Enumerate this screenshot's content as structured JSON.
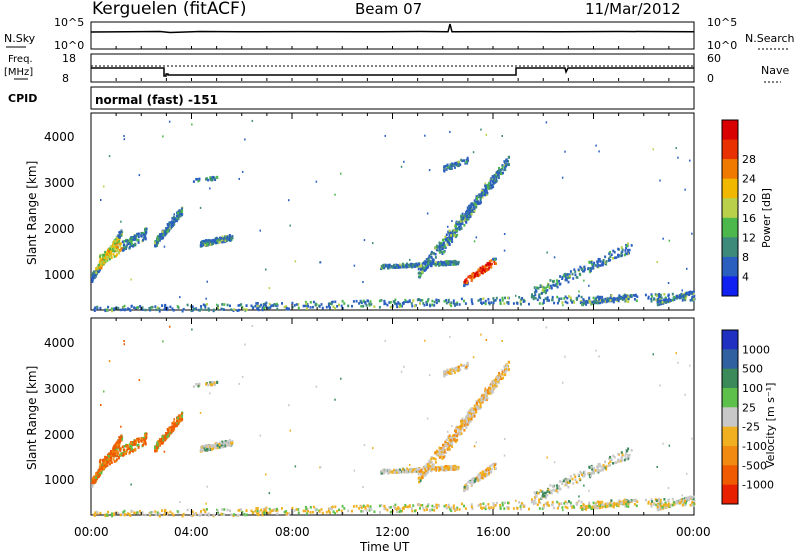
{
  "header": {
    "station": "Kerguelen (fitACF)",
    "beam": "Beam 07",
    "date": "11/Mar/2012"
  },
  "top_panels": {
    "nsky_label": "N.Sky",
    "nsky_ticks": [
      "10^5",
      "10^0"
    ],
    "nsearch_label": "N.Search",
    "nsearch_ticks": [
      "10^5",
      "10^0"
    ],
    "freq_label_1": "Freq.",
    "freq_label_2": "[MHz]",
    "freq_ticks": [
      "18",
      "8"
    ],
    "nave_label": "Nave",
    "nave_ticks": [
      "60",
      "0"
    ],
    "cpid_label": "CPID",
    "cpid_value": "normal (fast) -151"
  },
  "chart_data": [
    {
      "type": "heatmap",
      "name": "power",
      "ylabel": "Slant Range [km]",
      "yticks": [
        "1000",
        "2000",
        "3000",
        "4000"
      ],
      "ylim": [
        180,
        4500
      ],
      "xlim_hours": [
        0,
        24
      ],
      "colorbar": {
        "label": "Power [dB]",
        "ticks": [
          "4",
          "8",
          "12",
          "16",
          "20",
          "24",
          "28"
        ],
        "colors": [
          "#1020f0",
          "#2a5fc0",
          "#3d8a7a",
          "#4cb84c",
          "#b8d04a",
          "#f0b800",
          "#f07a00",
          "#e83000",
          "#d80000"
        ]
      }
    },
    {
      "type": "heatmap",
      "name": "velocity",
      "ylabel": "Slant Range [km]",
      "yticks": [
        "1000",
        "2000",
        "3000",
        "4000"
      ],
      "ylim": [
        180,
        4500
      ],
      "xlim_hours": [
        0,
        24
      ],
      "colorbar": {
        "label": "Velocity [m s⁻¹]",
        "ticks": [
          "1000",
          "500",
          "100",
          "25",
          "-25",
          "-100",
          "-500",
          "-1000"
        ],
        "colors": [
          "#2030c0",
          "#3060a0",
          "#3a8a5a",
          "#5cc04a",
          "#c8c8c8",
          "#f0b020",
          "#f08a10",
          "#f05a00",
          "#e82000"
        ]
      }
    }
  ],
  "x_axis": {
    "ticks": [
      "00:00",
      "04:00",
      "08:00",
      "12:00",
      "16:00",
      "20:00",
      "00:00"
    ],
    "label": "Time UT"
  }
}
